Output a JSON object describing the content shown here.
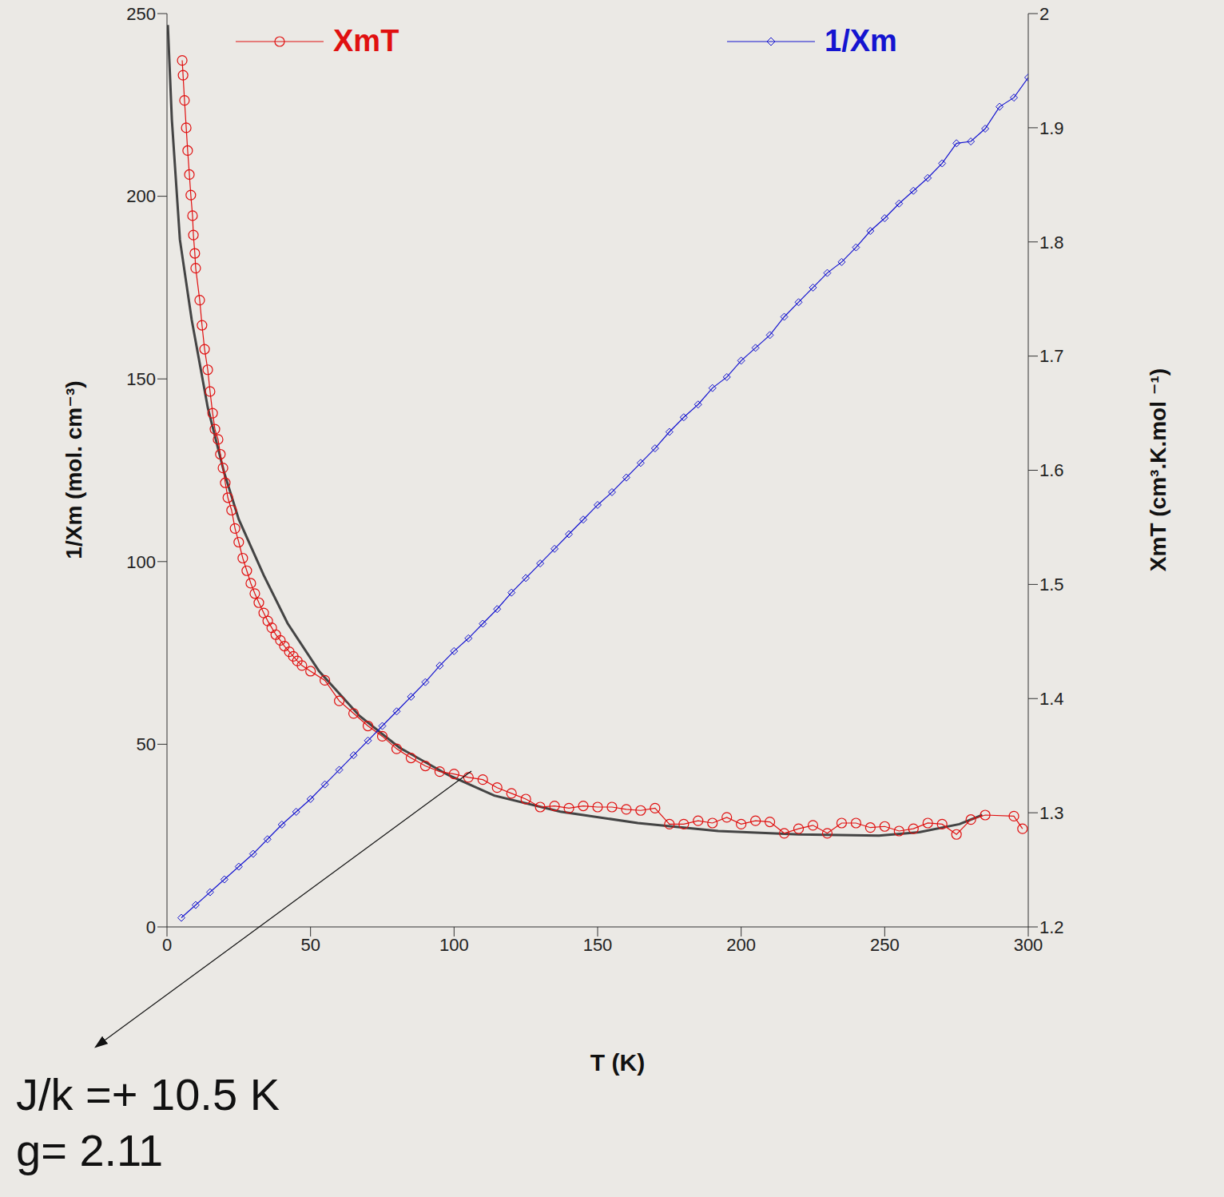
{
  "chart_data": {
    "type": "line",
    "x_label": "T (K)",
    "y_label": "1/Xm (mol. cm⁻³)",
    "y2_label": "XmT (cm³.K.mol ⁻¹)",
    "xlim": [
      0,
      300
    ],
    "xticks": [
      0,
      50,
      100,
      150,
      200,
      250,
      300
    ],
    "ylim": [
      0,
      250
    ],
    "yticks": [
      0,
      50,
      100,
      150,
      200,
      250
    ],
    "y2lim": [
      1.2,
      2
    ],
    "y2ticks": [
      1.2,
      1.3,
      1.4,
      1.5,
      1.6,
      1.7,
      1.8,
      1.9,
      2
    ],
    "legend": "top",
    "series": [
      {
        "name": "XmT",
        "color": "#e01010",
        "marker": "circle",
        "axis": "y2",
        "x": [
          5.3,
          5.6,
          6.1,
          6.7,
          7.2,
          7.8,
          8.3,
          8.9,
          9.2,
          9.7,
          10.0,
          11.4,
          12.2,
          13.1,
          14.2,
          15.0,
          15.9,
          16.7,
          17.8,
          18.6,
          19.5,
          20.3,
          21.2,
          22.5,
          23.7,
          25.0,
          26.4,
          27.8,
          29.2,
          30.6,
          32.0,
          33.7,
          35.1,
          36.5,
          37.9,
          39.5,
          40.9,
          42.6,
          44.0,
          45.4,
          47.0,
          50,
          55,
          60,
          65,
          70,
          75,
          80,
          85,
          90,
          95,
          100,
          105,
          110,
          115,
          120,
          125,
          130,
          135,
          140,
          145,
          150,
          155,
          160,
          165,
          170,
          175,
          180,
          185,
          190,
          195,
          200,
          205,
          210,
          215,
          220,
          225,
          230,
          235,
          240,
          245,
          250,
          255,
          260,
          265,
          270,
          275,
          280,
          285,
          295,
          298
        ],
        "values": [
          1.959,
          1.946,
          1.924,
          1.9,
          1.88,
          1.859,
          1.841,
          1.823,
          1.806,
          1.79,
          1.777,
          1.749,
          1.727,
          1.706,
          1.688,
          1.669,
          1.65,
          1.636,
          1.627,
          1.614,
          1.602,
          1.589,
          1.576,
          1.565,
          1.549,
          1.537,
          1.523,
          1.512,
          1.501,
          1.492,
          1.484,
          1.475,
          1.468,
          1.462,
          1.456,
          1.451,
          1.446,
          1.441,
          1.437,
          1.433,
          1.429,
          1.424,
          1.416,
          1.398,
          1.387,
          1.376,
          1.367,
          1.356,
          1.348,
          1.341,
          1.336,
          1.334,
          1.331,
          1.329,
          1.322,
          1.317,
          1.312,
          1.305,
          1.306,
          1.304,
          1.306,
          1.305,
          1.305,
          1.303,
          1.302,
          1.304,
          1.29,
          1.29,
          1.293,
          1.291,
          1.296,
          1.29,
          1.293,
          1.292,
          1.282,
          1.286,
          1.289,
          1.282,
          1.291,
          1.291,
          1.287,
          1.288,
          1.284,
          1.286,
          1.291,
          1.29,
          1.281,
          1.294,
          1.298,
          1.297,
          1.286
        ]
      },
      {
        "name": "1/Xm",
        "color": "#1414d0",
        "marker": "diamond",
        "axis": "y",
        "x": [
          5,
          10,
          15,
          20,
          25,
          30,
          35,
          40,
          45,
          50,
          55,
          60,
          65,
          70,
          75,
          80,
          85,
          90,
          95,
          100,
          105,
          110,
          115,
          120,
          125,
          130,
          135,
          140,
          145,
          150,
          155,
          160,
          165,
          170,
          175,
          180,
          185,
          190,
          195,
          200,
          205,
          210,
          215,
          220,
          225,
          230,
          235,
          240,
          245,
          250,
          255,
          260,
          265,
          270,
          275,
          280,
          285,
          290,
          295,
          300
        ],
        "values": [
          2.5,
          6,
          9.5,
          13,
          16.5,
          20,
          24,
          28,
          31.5,
          35,
          39,
          43,
          47,
          51,
          55,
          59,
          63,
          67,
          71.5,
          75.5,
          79,
          83,
          87,
          91.5,
          95.5,
          99.5,
          103.5,
          107.5,
          111.5,
          115.5,
          119,
          123,
          127,
          131,
          135.5,
          139.5,
          143,
          147.5,
          150.5,
          155,
          158.5,
          162,
          167,
          171,
          175,
          179,
          182,
          186,
          190.5,
          194,
          198,
          201.5,
          205,
          209,
          214.5,
          215,
          218.5,
          224.5,
          227,
          232.5
        ]
      }
    ],
    "fit": {
      "color": "#444444",
      "axis": "y2",
      "x": [
        0.3,
        1.7,
        4.5,
        8.6,
        14.2,
        19.8,
        25,
        33.7,
        42,
        53,
        67,
        81,
        98,
        114,
        137,
        164,
        192,
        220,
        248,
        262,
        276,
        284
      ],
      "values": [
        1.99,
        1.907,
        1.802,
        1.732,
        1.655,
        1.599,
        1.557,
        1.508,
        1.466,
        1.424,
        1.385,
        1.357,
        1.333,
        1.315,
        1.301,
        1.291,
        1.284,
        1.281,
        1.28,
        1.283,
        1.29,
        1.298
      ]
    },
    "annotations": [
      "J/k =+ 10.5 K",
      "g= 2.11"
    ]
  }
}
